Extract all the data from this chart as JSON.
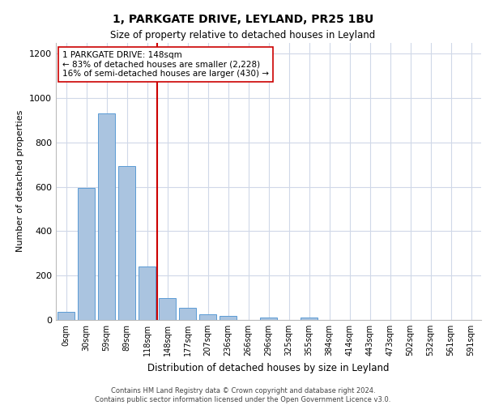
{
  "title1": "1, PARKGATE DRIVE, LEYLAND, PR25 1BU",
  "title2": "Size of property relative to detached houses in Leyland",
  "xlabel": "Distribution of detached houses by size in Leyland",
  "ylabel": "Number of detached properties",
  "categories": [
    "0sqm",
    "30sqm",
    "59sqm",
    "89sqm",
    "118sqm",
    "148sqm",
    "177sqm",
    "207sqm",
    "236sqm",
    "266sqm",
    "296sqm",
    "325sqm",
    "355sqm",
    "384sqm",
    "414sqm",
    "443sqm",
    "473sqm",
    "502sqm",
    "532sqm",
    "561sqm",
    "591sqm"
  ],
  "values": [
    35,
    595,
    930,
    695,
    240,
    100,
    55,
    25,
    18,
    0,
    10,
    0,
    10,
    0,
    0,
    0,
    0,
    0,
    0,
    0,
    0
  ],
  "bar_color": "#aac4e0",
  "bar_edge_color": "#5b9bd5",
  "property_line_index": 5,
  "property_line_color": "#cc0000",
  "annotation_text": "1 PARKGATE DRIVE: 148sqm\n← 83% of detached houses are smaller (2,228)\n16% of semi-detached houses are larger (430) →",
  "annotation_box_color": "#ffffff",
  "annotation_box_edge_color": "#cc0000",
  "ylim": [
    0,
    1250
  ],
  "yticks": [
    0,
    200,
    400,
    600,
    800,
    1000,
    1200
  ],
  "footnote": "Contains HM Land Registry data © Crown copyright and database right 2024.\nContains public sector information licensed under the Open Government Licence v3.0.",
  "bg_color": "#ffffff",
  "grid_color": "#d0d8e8"
}
